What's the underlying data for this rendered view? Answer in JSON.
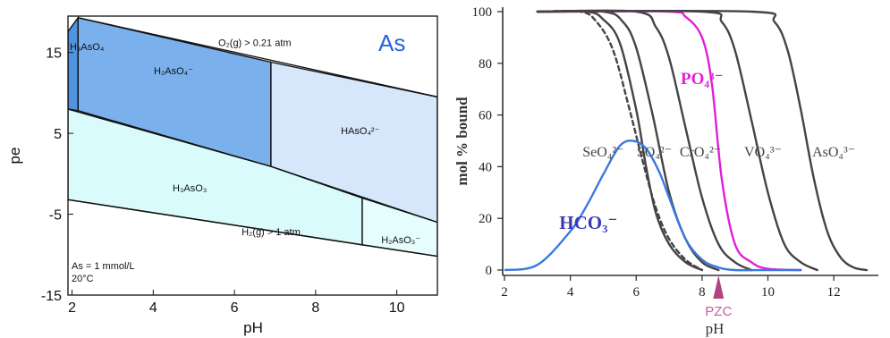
{
  "chart_data": [
    {
      "type": "area",
      "title": "As",
      "xlabel": "pH",
      "ylabel": "pe",
      "xlim": [
        1.9,
        11.0
      ],
      "ylim": [
        -15,
        19.5
      ],
      "x_ticks": [
        2,
        4,
        6,
        8,
        10
      ],
      "y_ticks": [
        -15,
        -5,
        5,
        15
      ],
      "regions": [
        {
          "name": "H3AsO4",
          "label": "H₃AsO₄",
          "color": "#4f94e0",
          "polygon": [
            [
              1.9,
              17.6
            ],
            [
              2.15,
              19.3
            ],
            [
              2.15,
              7.8
            ],
            [
              1.9,
              8.0
            ]
          ]
        },
        {
          "name": "H2AsO4-",
          "label": "H₂AsO₄⁻",
          "color": "#7ab0ec",
          "polygon": [
            [
              2.15,
              19.3
            ],
            [
              6.9,
              13.8
            ],
            [
              6.9,
              0.9
            ],
            [
              2.15,
              7.8
            ]
          ]
        },
        {
          "name": "HAsO4 2-",
          "label": "HAsO₄²⁻",
          "color": "#d6e6fb",
          "polygon": [
            [
              6.9,
              13.8
            ],
            [
              11.0,
              9.5
            ],
            [
              11.0,
              -6.0
            ],
            [
              6.9,
              0.9
            ]
          ]
        },
        {
          "name": "H3AsO3",
          "label": "H₃AsO₃",
          "color": "#d9fbfb",
          "polygon": [
            [
              1.9,
              8.0
            ],
            [
              6.9,
              0.9
            ],
            [
              9.15,
              -3.0
            ],
            [
              9.15,
              -8.8
            ],
            [
              1.9,
              -3.2
            ]
          ]
        },
        {
          "name": "H2AsO3-",
          "label": "H₂AsO₃⁻",
          "color": "#e6fdfd",
          "polygon": [
            [
              9.15,
              -3.0
            ],
            [
              11.0,
              -6.0
            ],
            [
              11.0,
              -10.2
            ],
            [
              9.15,
              -8.8
            ]
          ]
        }
      ],
      "lines": [
        {
          "name": "O2(g) > 0.21 atm",
          "label": "O₂(g) > 0.21 atm",
          "points": [
            [
              2.15,
              19.3
            ],
            [
              11.0,
              9.5
            ]
          ]
        },
        {
          "name": "H2(g) > 1 atm",
          "label": "H₂(g) > 1 atm",
          "points": [
            [
              1.9,
              -3.2
            ],
            [
              11.0,
              -10.2
            ]
          ]
        }
      ],
      "annotations": [
        "As = 1 mmol/L",
        "20°C"
      ]
    },
    {
      "type": "line",
      "xlabel": "pH",
      "ylabel": "mol % bound",
      "xlim": [
        2,
        13.3
      ],
      "ylim": [
        0,
        100
      ],
      "x_ticks": [
        2,
        4,
        6,
        8,
        10,
        12
      ],
      "y_ticks": [
        0,
        20,
        40,
        60,
        80,
        100
      ],
      "marker": {
        "label": "PZC",
        "x": 8.5
      },
      "series": [
        {
          "name": "SeO4 2-",
          "label": "SeO₄²⁻",
          "color": "#444444",
          "dash": false,
          "x": [
            3.0,
            4.5,
            5.0,
            5.5,
            6.0,
            6.3,
            6.6,
            7.0,
            7.5,
            8.0
          ],
          "y": [
            100,
            100,
            97,
            88,
            62,
            40,
            22,
            10,
            3,
            0
          ]
        },
        {
          "name": "SeO4 2- (dashed)",
          "color": "#444444",
          "dash": true,
          "x": [
            3.0,
            4.3,
            4.8,
            5.3,
            5.8,
            6.2,
            6.6,
            7.0,
            7.5,
            8.0
          ],
          "y": [
            100,
            100,
            96,
            85,
            62,
            42,
            24,
            12,
            4,
            0
          ]
        },
        {
          "name": "SO4 2-",
          "label": "SO₄²⁻",
          "color": "#444444",
          "dash": false,
          "x": [
            3.0,
            5.0,
            5.6,
            6.0,
            6.5,
            7.0,
            7.5,
            8.0,
            8.5
          ],
          "y": [
            100,
            100,
            96,
            86,
            60,
            30,
            12,
            3,
            0
          ]
        },
        {
          "name": "CrO4 2-",
          "label": "CrO₄²⁻",
          "color": "#444444",
          "dash": false,
          "x": [
            3.0,
            6.0,
            6.6,
            7.0,
            7.5,
            8.0,
            8.5,
            9.0,
            9.5
          ],
          "y": [
            100,
            100,
            94,
            82,
            55,
            28,
            10,
            3,
            0
          ]
        },
        {
          "name": "PO4 3-",
          "label": "PO₄³⁻",
          "color": "#e020d8",
          "dash": false,
          "x": [
            3.0,
            4.0,
            7.0,
            7.5,
            8.0,
            8.3,
            8.6,
            9.0,
            9.5,
            10.0,
            11.0
          ],
          "y": [
            100,
            100,
            100,
            98,
            90,
            72,
            35,
            10,
            3,
            0.5,
            0
          ]
        },
        {
          "name": "VO4 3-",
          "label": "VO₄³⁻",
          "color": "#444444",
          "dash": false,
          "x": [
            3.0,
            8.0,
            8.6,
            9.0,
            9.5,
            10.0,
            10.5,
            11.0,
            11.5
          ],
          "y": [
            100,
            100,
            96,
            85,
            58,
            30,
            10,
            3,
            0
          ]
        },
        {
          "name": "AsO4 3-",
          "label": "AsO₄³⁻",
          "color": "#444444",
          "dash": false,
          "x": [
            3.0,
            9.5,
            10.2,
            10.6,
            11.0,
            11.4,
            11.8,
            12.2,
            12.6,
            13.0
          ],
          "y": [
            100,
            100,
            96,
            85,
            62,
            35,
            15,
            5,
            1,
            0
          ]
        },
        {
          "name": "HCO3-",
          "label": "HCO₃⁻",
          "color": "#3a78e0",
          "dash": false,
          "x": [
            2.0,
            3.0,
            4.0,
            4.5,
            5.0,
            5.5,
            5.9,
            6.3,
            6.7,
            7.0,
            7.5,
            8.0,
            8.5,
            9.0,
            10.0,
            11.0
          ],
          "y": [
            0,
            2,
            15,
            25,
            37,
            48,
            50,
            47,
            38,
            28,
            12,
            4,
            1,
            0,
            0,
            0
          ]
        }
      ]
    }
  ]
}
